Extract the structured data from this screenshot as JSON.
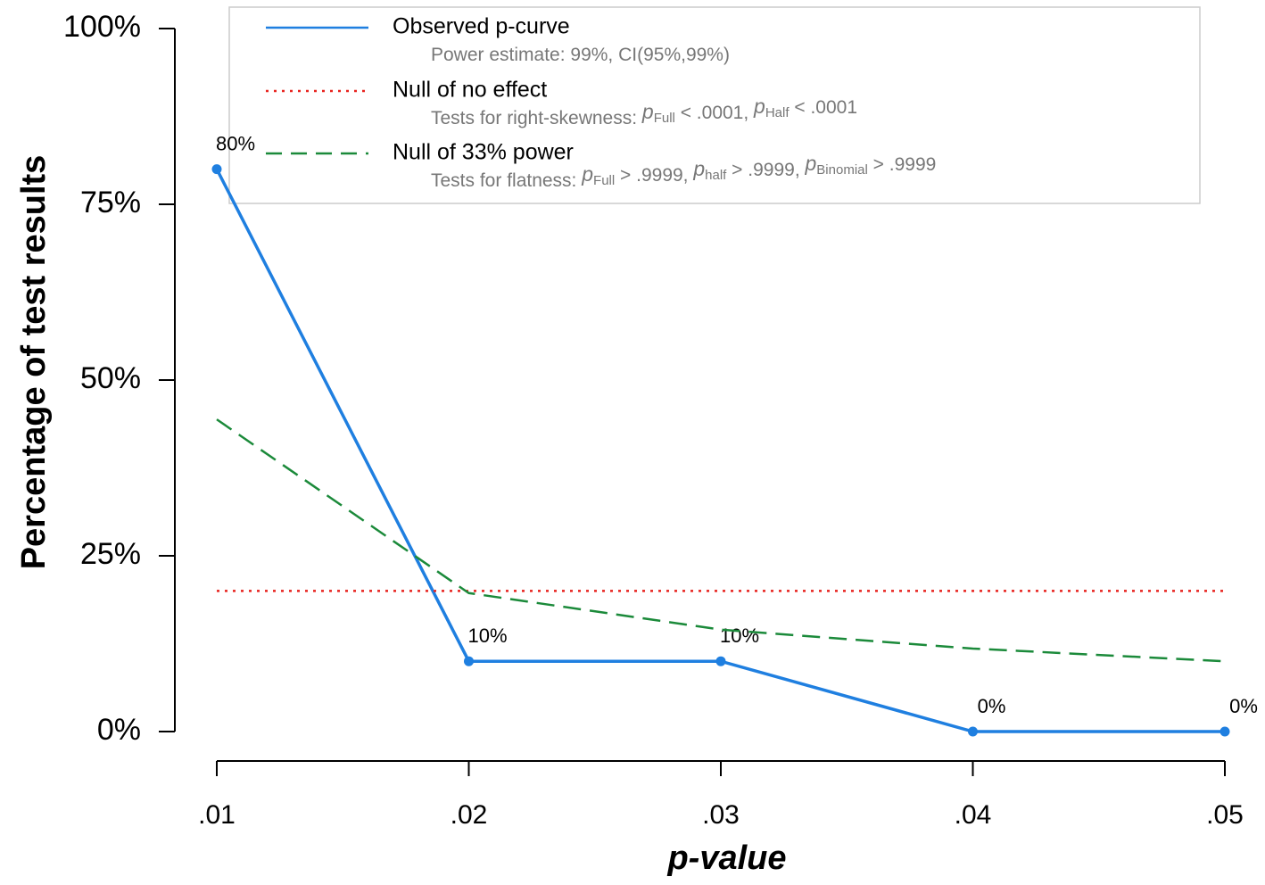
{
  "chart_data": {
    "type": "line",
    "x_label": "p-value",
    "y_label": "Percentage of test results",
    "x": [
      0.01,
      0.02,
      0.03,
      0.04,
      0.05
    ],
    "xlim": [
      0.01,
      0.05
    ],
    "xticks": [
      {
        "value": 0.01,
        "label": ".01"
      },
      {
        "value": 0.02,
        "label": ".02"
      },
      {
        "value": 0.03,
        "label": ".03"
      },
      {
        "value": 0.04,
        "label": ".04"
      },
      {
        "value": 0.05,
        "label": ".05"
      }
    ],
    "ylim": [
      0,
      100
    ],
    "yticks": [
      {
        "value": 0,
        "label": "0%"
      },
      {
        "value": 25,
        "label": "25%"
      },
      {
        "value": 50,
        "label": "50%"
      },
      {
        "value": 75,
        "label": "75%"
      },
      {
        "value": 100,
        "label": "100%"
      }
    ],
    "series": [
      {
        "name": "Observed p-curve",
        "color": "#1f7fe0",
        "style": "solid",
        "markers": true,
        "values": [
          80,
          10,
          10,
          0,
          0
        ],
        "value_labels": [
          "80%",
          "10%",
          "10%",
          "0%",
          "0%"
        ],
        "note": [
          "Power estimate: 99%, CI(95%,99%)"
        ]
      },
      {
        "name": "Null of no effect",
        "color": "#e8231f",
        "style": "dotted",
        "markers": false,
        "values": [
          20,
          20,
          20,
          20,
          20
        ],
        "note": [
          "Tests for right-skewness: ",
          {
            "italic": "p"
          },
          {
            "sub": "Full"
          },
          "  < .0001,  ",
          {
            "italic": "p"
          },
          {
            "sub": "Half"
          },
          "  < .0001"
        ]
      },
      {
        "name": "Null of 33% power",
        "color": "#1b8a3a",
        "style": "dashed",
        "markers": false,
        "values": [
          44.4,
          19.7,
          14.5,
          11.8,
          10.0
        ],
        "note": [
          "Tests for flatness: ",
          {
            "italic": "p"
          },
          {
            "sub": "Full"
          },
          "  > .9999,  ",
          {
            "italic": "p"
          },
          {
            "sub": "half"
          },
          "  > .9999,  ",
          {
            "italic": "p"
          },
          {
            "sub": "Binomial"
          },
          "  > .9999"
        ]
      }
    ]
  }
}
